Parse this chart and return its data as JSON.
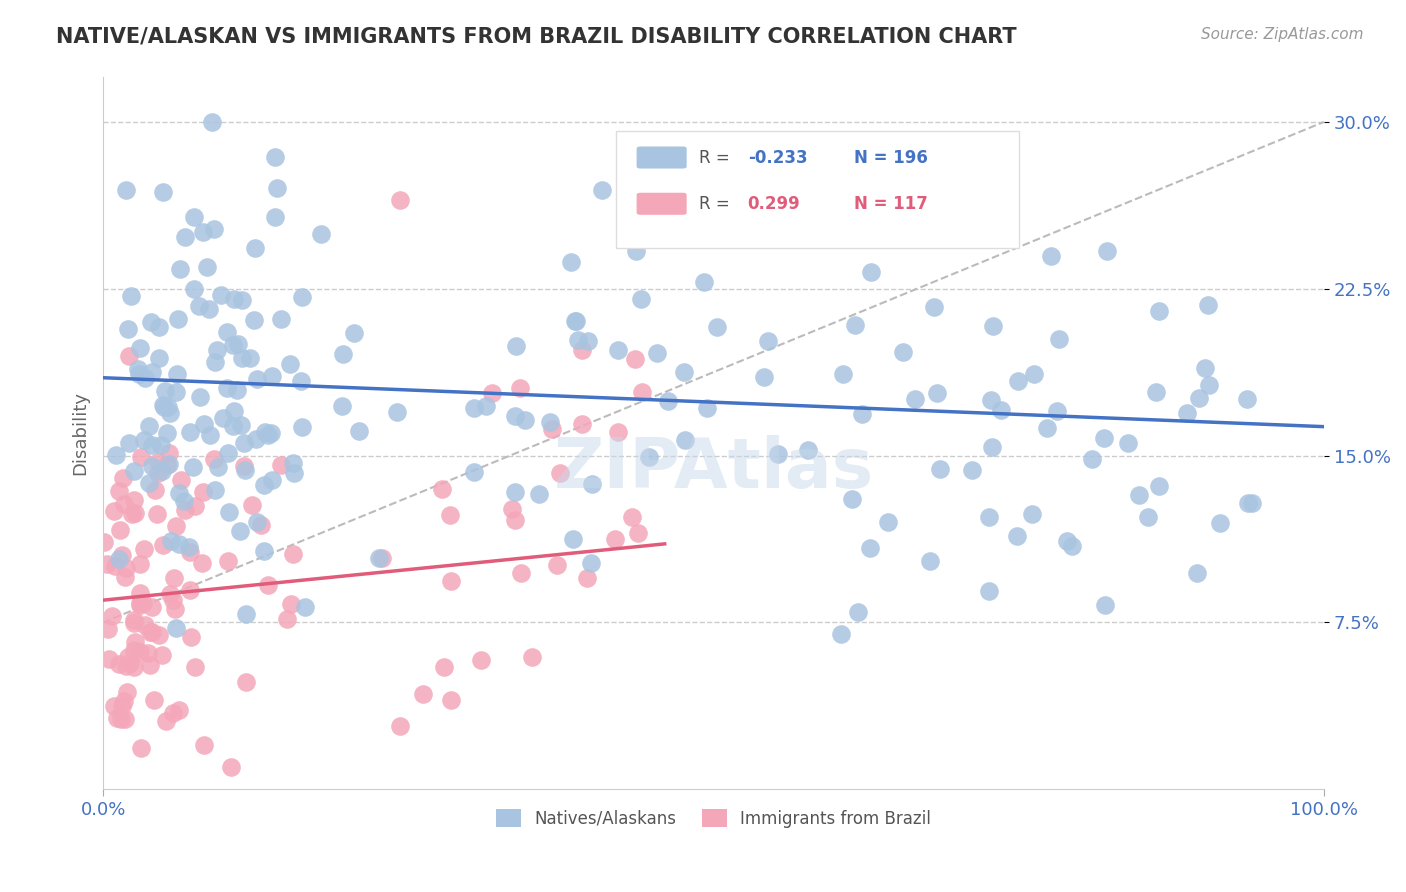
{
  "title": "NATIVE/ALASKAN VS IMMIGRANTS FROM BRAZIL DISABILITY CORRELATION CHART",
  "source_text": "Source: ZipAtlas.com",
  "ylabel": "Disability",
  "xlim": [
    0.0,
    1.0
  ],
  "ylim": [
    0.0,
    0.32
  ],
  "ytick_values": [
    0.075,
    0.15,
    0.225,
    0.3
  ],
  "ytick_labels": [
    "7.5%",
    "15.0%",
    "22.5%",
    "30.0%"
  ],
  "native_color": "#a8c4e0",
  "native_line_color": "#4472c4",
  "brazil_color": "#f4a7b9",
  "brazil_line_color": "#e05c7a",
  "r_native": -0.233,
  "n_native": 196,
  "r_brazil": 0.299,
  "n_brazil": 117,
  "native_slope": -0.022,
  "native_intercept": 0.185,
  "brazil_slope": 0.055,
  "brazil_intercept": 0.085,
  "background_color": "#ffffff",
  "grid_color": "#cccccc",
  "watermark_text": "ZIPAtlas",
  "legend_label_native": "Natives/Alaskans",
  "legend_label_brazil": "Immigrants from Brazil",
  "title_color": "#333333",
  "tick_color": "#4472c4"
}
